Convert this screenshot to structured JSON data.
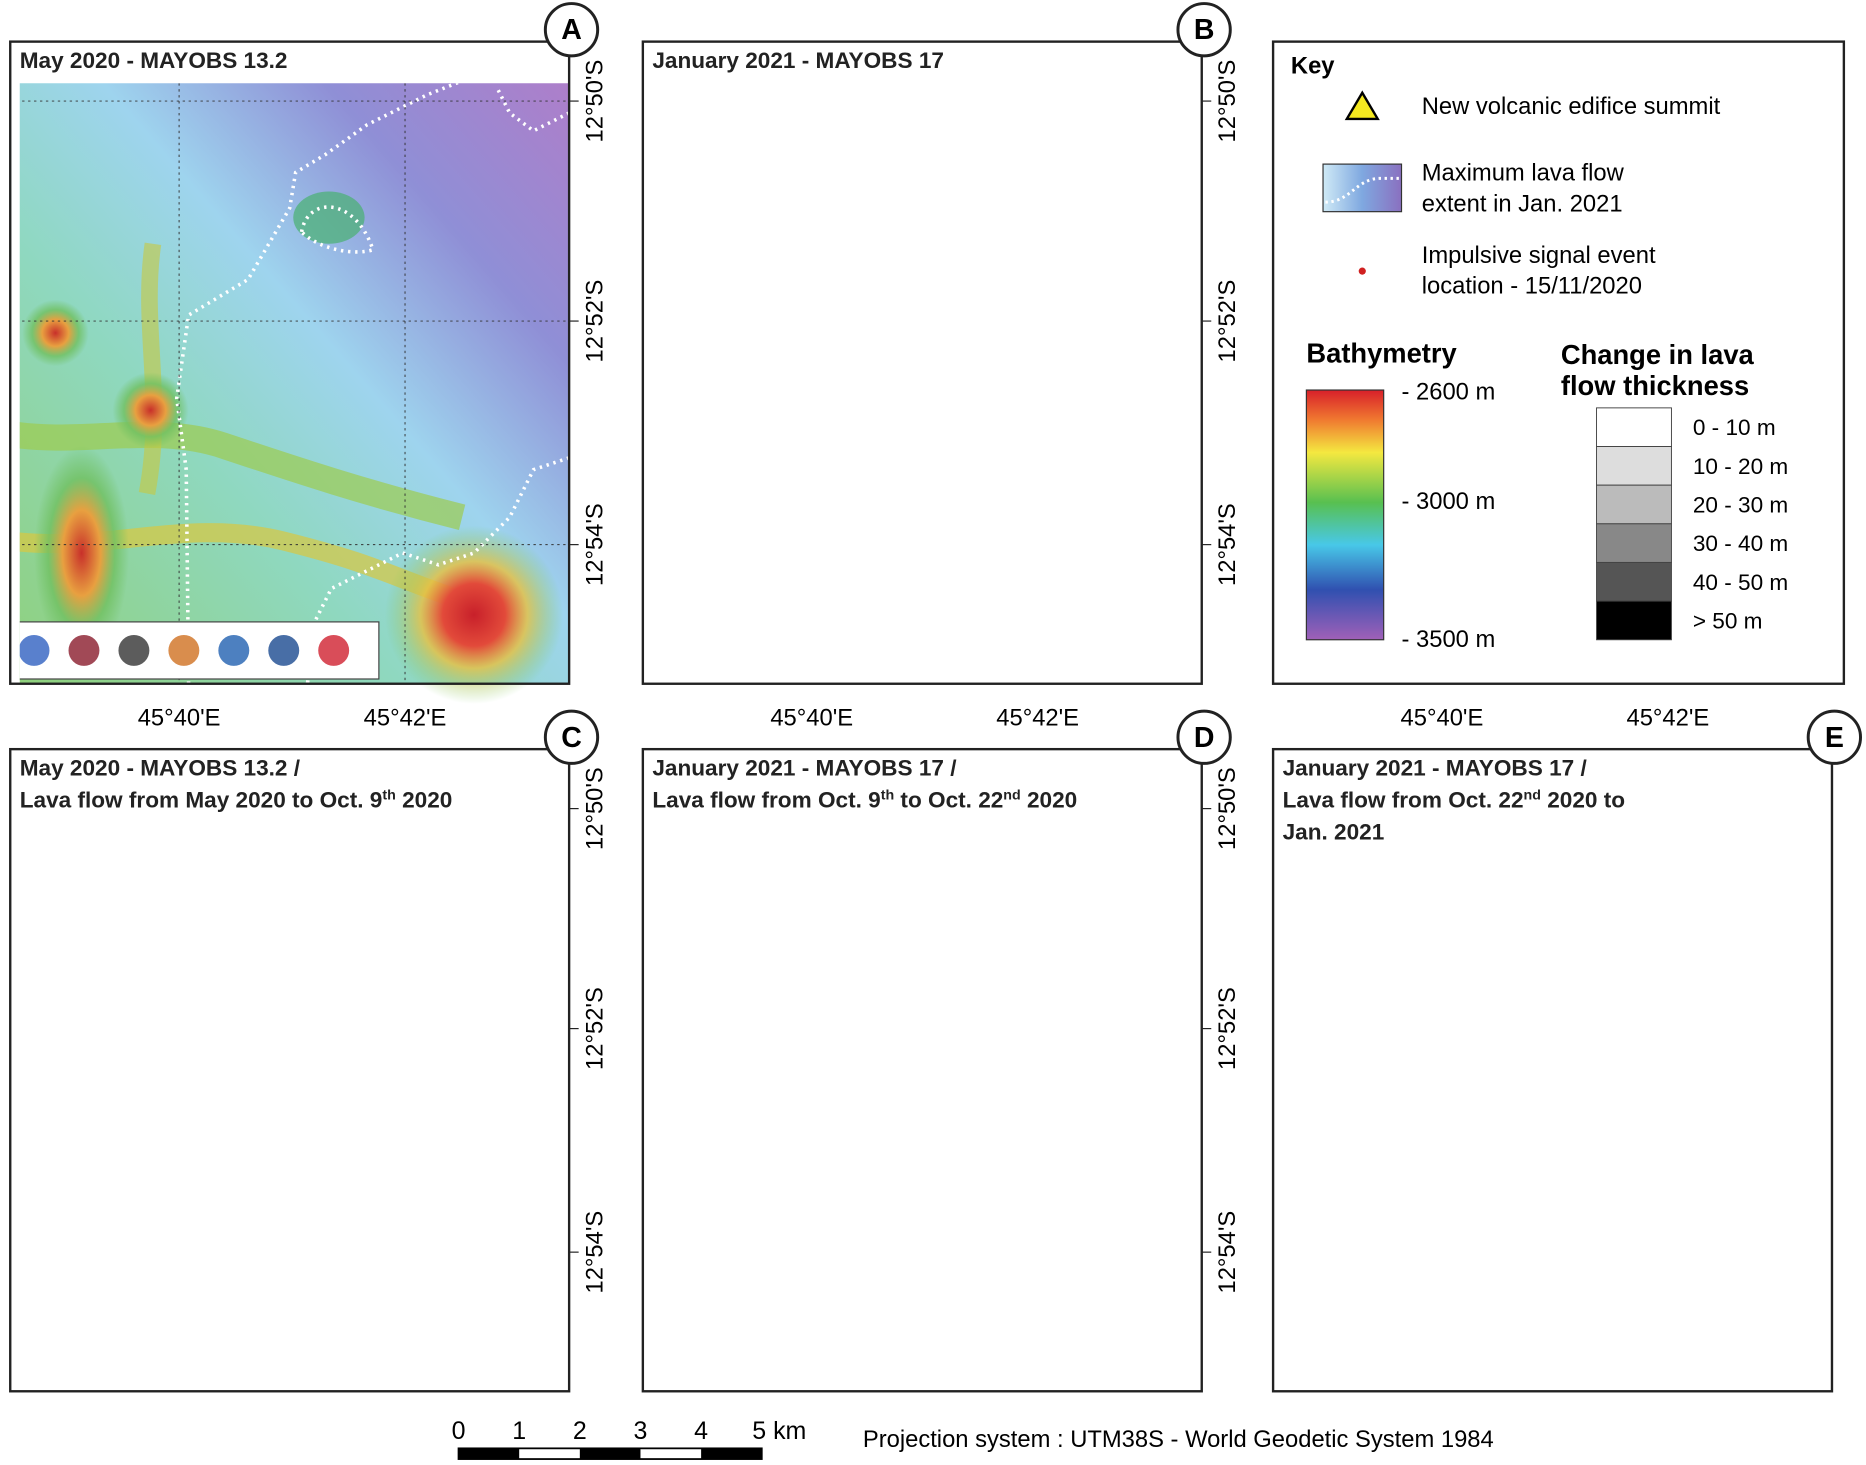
{
  "panels": [
    {
      "letter": "A",
      "title": [
        [
          "May 2020 - MAYOBS 13.2"
        ]
      ]
    },
    {
      "letter": "B",
      "title": [
        [
          "January 2021 - MAYOBS 17"
        ]
      ]
    },
    {
      "letter": "C",
      "title": [
        [
          "May 2020 - MAYOBS 13.2 /"
        ],
        [
          "Lava flow from May 2020 to Oct. 9",
          "th",
          " 2020"
        ]
      ]
    },
    {
      "letter": "D",
      "title": [
        [
          "January 2021 - MAYOBS 17 /"
        ],
        [
          "Lava flow from Oct. 9",
          "th",
          " to Oct. 22",
          "nd",
          " 2020"
        ]
      ]
    },
    {
      "letter": "E",
      "title": [
        [
          "January 2021 - MAYOBS 17 /"
        ],
        [
          "Lava flow from Oct. 22",
          "nd",
          "  2020 to"
        ],
        [
          "Jan. 2021"
        ]
      ]
    }
  ],
  "lat_labels": [
    "12°50'S",
    "12°52'S",
    "12°54'S"
  ],
  "lon_labels": [
    "45°40'E",
    "45°42'E"
  ],
  "key": {
    "title": "Key",
    "summit": "New volcanic edifice summit",
    "extent": [
      "Maximum lava flow",
      "extent in Jan. 2021"
    ],
    "events": [
      "Impulsive signal event",
      "location - 15/11/2020"
    ],
    "bathymetry_title": "Bathymetry",
    "bathymetry_labels": [
      "- 2600 m",
      "- 3000 m",
      "- 3500 m"
    ],
    "thickness_title": [
      "Change in lava",
      "flow thickness"
    ],
    "thickness_classes": [
      "0 - 10 m",
      "10 - 20 m",
      "20 - 30 m",
      "30 - 40 m",
      "40 - 50 m",
      "> 50 m"
    ]
  },
  "scale_bar": {
    "labels": [
      "0",
      "1",
      "2",
      "3",
      "4",
      "5 km"
    ]
  },
  "projection": "Projection system : UTM38S - World Geodetic System 1984"
}
